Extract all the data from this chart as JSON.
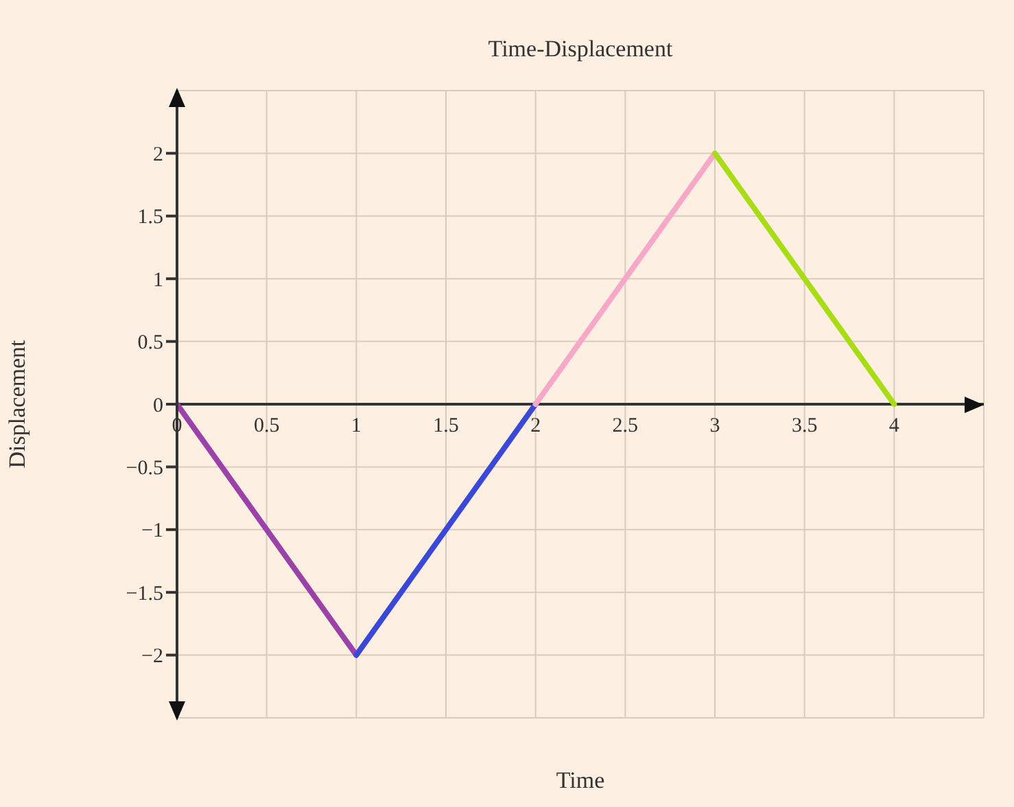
{
  "chart_data": {
    "type": "line",
    "title": "Time-Displacement",
    "xlabel": "Time",
    "ylabel": "Displacement",
    "series": [
      {
        "color": "#9a42a8",
        "x": [
          0,
          1
        ],
        "values": [
          0,
          -2
        ]
      },
      {
        "color": "#3a48d8",
        "x": [
          1,
          2
        ],
        "values": [
          -2,
          0
        ]
      },
      {
        "color": "#f7a8c8",
        "x": [
          2,
          3
        ],
        "values": [
          0,
          2
        ]
      },
      {
        "color": "#a8dc14",
        "x": [
          3,
          4
        ],
        "values": [
          2,
          0
        ]
      }
    ],
    "xlim": [
      0,
      4.5
    ],
    "xticks": [
      0,
      0.5,
      1,
      1.5,
      2,
      2.5,
      3,
      3.5,
      4
    ],
    "ylim": [
      -2.5,
      2.5
    ],
    "yticks": [
      -2,
      -1.5,
      -1,
      -0.5,
      0,
      0.5,
      1,
      1.5,
      2
    ],
    "grid": true
  }
}
